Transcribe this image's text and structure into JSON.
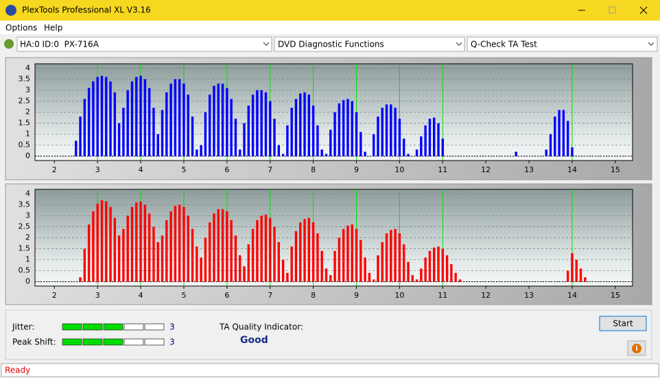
{
  "window": {
    "title": "PlexTools Professional XL V3.16"
  },
  "menu": [
    "Options",
    "Help"
  ],
  "toolbar": {
    "drive": "HA:0 ID:0  PX-716A",
    "function": "DVD Diagnostic Functions",
    "test": "Q-Check TA Test"
  },
  "chart_data": [
    {
      "type": "bar",
      "color": "#0000ff",
      "x": [
        2.5,
        2.6,
        2.7,
        2.8,
        2.9,
        3,
        3.1,
        3.2,
        3.3,
        3.4,
        3.5,
        3.6,
        3.7,
        3.8,
        3.9,
        4,
        4.1,
        4.2,
        4.3,
        4.4,
        4.5,
        4.6,
        4.7,
        4.8,
        4.9,
        5,
        5.1,
        5.2,
        5.3,
        5.4,
        5.5,
        5.6,
        5.7,
        5.8,
        5.9,
        6,
        6.1,
        6.2,
        6.3,
        6.4,
        6.5,
        6.6,
        6.7,
        6.8,
        6.9,
        7,
        7.1,
        7.2,
        7.3,
        7.4,
        7.5,
        7.6,
        7.7,
        7.8,
        7.9,
        8,
        8.1,
        8.2,
        8.3,
        8.4,
        8.5,
        8.6,
        8.7,
        8.8,
        8.9,
        9,
        9.1,
        9.2,
        9.3,
        9.4,
        9.5,
        9.6,
        9.7,
        9.8,
        9.9,
        10,
        10.1,
        10.2,
        10.3,
        10.4,
        10.5,
        10.6,
        10.7,
        10.8,
        10.9,
        11,
        12.7,
        13.4,
        13.5,
        13.6,
        13.7,
        13.8,
        13.9,
        14
      ],
      "values": [
        0.7,
        1.8,
        2.6,
        3.1,
        3.4,
        3.6,
        3.65,
        3.6,
        3.4,
        2.9,
        1.5,
        2.2,
        3,
        3.4,
        3.6,
        3.65,
        3.5,
        3.1,
        2.2,
        1,
        2.1,
        2.9,
        3.3,
        3.5,
        3.5,
        3.3,
        2.8,
        1.8,
        0.3,
        0.5,
        2,
        2.8,
        3.2,
        3.3,
        3.3,
        3.1,
        2.6,
        1.7,
        0.3,
        1.5,
        2.3,
        2.8,
        3,
        3,
        2.9,
        2.5,
        1.7,
        0.5,
        0.1,
        1.4,
        2.2,
        2.6,
        2.85,
        2.9,
        2.8,
        2.3,
        1.4,
        0.3,
        0.1,
        1.2,
        2,
        2.4,
        2.55,
        2.6,
        2.5,
        2,
        1.1,
        0.2,
        0,
        1,
        1.8,
        2.2,
        2.35,
        2.35,
        2.2,
        1.7,
        0.8,
        0.1,
        0,
        0.3,
        0.9,
        1.4,
        1.7,
        1.75,
        1.5,
        0.8,
        0.2,
        0.3,
        1,
        1.8,
        2.1,
        2.1,
        1.6,
        0.4
      ],
      "xlim": [
        1.55,
        15.4
      ],
      "ylim": [
        -0.2,
        4.2
      ],
      "xticks": [
        2,
        3,
        4,
        5,
        6,
        7,
        8,
        9,
        10,
        11,
        12,
        13,
        14,
        15
      ],
      "yticks": [
        0,
        0.5,
        1,
        1.5,
        2,
        2.5,
        3,
        3.5,
        4
      ],
      "markers": [
        3,
        4,
        5,
        6,
        7,
        8,
        9,
        10,
        11,
        14
      ],
      "marker_color": "#00e000",
      "grid": true
    },
    {
      "type": "bar",
      "color": "#ff0000",
      "x": [
        2.6,
        2.7,
        2.8,
        2.9,
        3,
        3.1,
        3.2,
        3.3,
        3.4,
        3.5,
        3.6,
        3.7,
        3.8,
        3.9,
        4,
        4.1,
        4.2,
        4.3,
        4.4,
        4.5,
        4.6,
        4.7,
        4.8,
        4.9,
        5,
        5.1,
        5.2,
        5.3,
        5.4,
        5.5,
        5.6,
        5.7,
        5.8,
        5.9,
        6,
        6.1,
        6.2,
        6.3,
        6.4,
        6.5,
        6.6,
        6.7,
        6.8,
        6.9,
        7,
        7.1,
        7.2,
        7.3,
        7.4,
        7.5,
        7.6,
        7.7,
        7.8,
        7.9,
        8,
        8.1,
        8.2,
        8.3,
        8.4,
        8.5,
        8.6,
        8.7,
        8.8,
        8.9,
        9,
        9.1,
        9.2,
        9.3,
        9.4,
        9.5,
        9.6,
        9.7,
        9.8,
        9.9,
        10,
        10.1,
        10.2,
        10.3,
        10.4,
        10.5,
        10.6,
        10.7,
        10.8,
        10.9,
        11,
        11.1,
        11.2,
        11.3,
        11.4,
        13.9,
        14,
        14.1,
        14.2,
        14.3
      ],
      "values": [
        0.2,
        1.5,
        2.6,
        3.2,
        3.55,
        3.7,
        3.65,
        3.4,
        2.9,
        2.1,
        2.4,
        3,
        3.4,
        3.6,
        3.65,
        3.5,
        3.1,
        2.5,
        1.8,
        2.1,
        2.8,
        3.2,
        3.45,
        3.5,
        3.4,
        3,
        2.4,
        1.6,
        1.1,
        2,
        2.7,
        3.1,
        3.3,
        3.3,
        3.2,
        2.8,
        2.1,
        1.2,
        0.7,
        1.7,
        2.4,
        2.8,
        3,
        3.05,
        2.9,
        2.5,
        1.8,
        1,
        0.4,
        1.6,
        2.3,
        2.7,
        2.85,
        2.9,
        2.7,
        2.2,
        1.4,
        0.6,
        0.3,
        1.4,
        2,
        2.4,
        2.55,
        2.6,
        2.4,
        1.9,
        1.1,
        0.4,
        0.1,
        1.2,
        1.8,
        2.2,
        2.35,
        2.4,
        2.2,
        1.7,
        0.9,
        0.3,
        0.1,
        0.6,
        1.1,
        1.4,
        1.55,
        1.6,
        1.5,
        1.2,
        0.8,
        0.4,
        0.1,
        0.5,
        1.3,
        1,
        0.6,
        0.2
      ],
      "xlim": [
        1.55,
        15.4
      ],
      "ylim": [
        -0.2,
        4.2
      ],
      "xticks": [
        2,
        3,
        4,
        5,
        6,
        7,
        8,
        9,
        10,
        11,
        12,
        13,
        14,
        15
      ],
      "yticks": [
        0,
        0.5,
        1,
        1.5,
        2,
        2.5,
        3,
        3.5,
        4
      ],
      "markers": [
        3,
        4,
        5,
        6,
        7,
        8,
        9,
        10,
        11,
        14
      ],
      "marker_color": "#00e000",
      "grid": true
    }
  ],
  "results": {
    "jitter": {
      "label": "Jitter:",
      "value": 3,
      "max": 5
    },
    "peak_shift": {
      "label": "Peak Shift:",
      "value": 3,
      "max": 5
    },
    "ta_quality": {
      "label": "TA Quality Indicator:",
      "value": "Good"
    }
  },
  "buttons": {
    "start": "Start"
  },
  "status": "Ready"
}
